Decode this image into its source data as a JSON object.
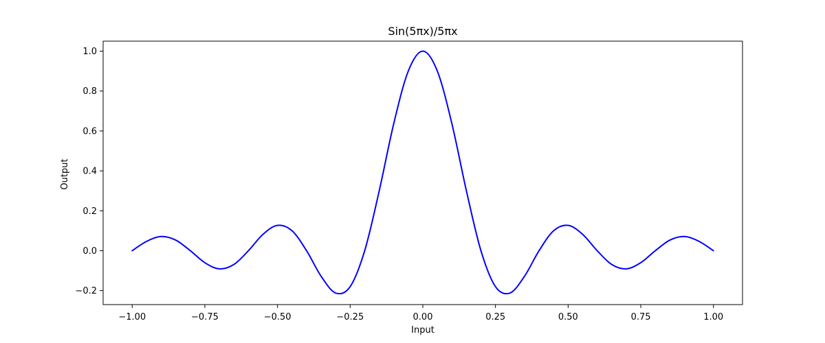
{
  "chart_data": {
    "type": "line",
    "title": "Sin(5πx)/5πx",
    "xlabel": "Input",
    "ylabel": "Output",
    "xlim": [
      -1.1,
      1.1
    ],
    "ylim": [
      -0.27,
      1.05
    ],
    "x_ticks": [
      -1.0,
      -0.75,
      -0.5,
      -0.25,
      0.0,
      0.25,
      0.5,
      0.75,
      1.0
    ],
    "x_tick_labels": [
      "−1.00",
      "−0.75",
      "−0.50",
      "−0.25",
      "0.00",
      "0.25",
      "0.50",
      "0.75",
      "1.00"
    ],
    "y_ticks": [
      -0.2,
      0.0,
      0.2,
      0.4,
      0.6,
      0.8,
      1.0
    ],
    "y_tick_labels": [
      "−0.2",
      "0.0",
      "0.2",
      "0.4",
      "0.6",
      "0.8",
      "1.0"
    ],
    "grid": false,
    "series": [
      {
        "color": "#0000ff",
        "x": [
          -1.0,
          -0.95,
          -0.9,
          -0.85,
          -0.8,
          -0.75,
          -0.7,
          -0.65,
          -0.6,
          -0.55,
          -0.5,
          -0.45,
          -0.4,
          -0.35,
          -0.3,
          -0.25,
          -0.2,
          -0.15,
          -0.1,
          -0.05,
          0.0,
          0.05,
          0.1,
          0.15,
          0.2,
          0.25,
          0.3,
          0.35,
          0.4,
          0.45,
          0.5,
          0.55,
          0.6,
          0.65,
          0.7,
          0.75,
          0.8,
          0.85,
          0.9,
          0.95,
          1.0
        ],
        "y": [
          0.0,
          0.047,
          0.071,
          0.053,
          0.0,
          -0.06,
          -0.091,
          -0.069,
          0.0,
          0.082,
          0.127,
          0.1,
          0.0,
          -0.128,
          -0.212,
          -0.18,
          0.0,
          0.3,
          0.637,
          0.9,
          1.0,
          0.9,
          0.637,
          0.3,
          0.0,
          -0.18,
          -0.212,
          -0.128,
          0.0,
          0.1,
          0.127,
          0.082,
          0.0,
          -0.069,
          -0.091,
          -0.06,
          0.0,
          0.053,
          0.071,
          0.047,
          0.0
        ]
      }
    ]
  }
}
